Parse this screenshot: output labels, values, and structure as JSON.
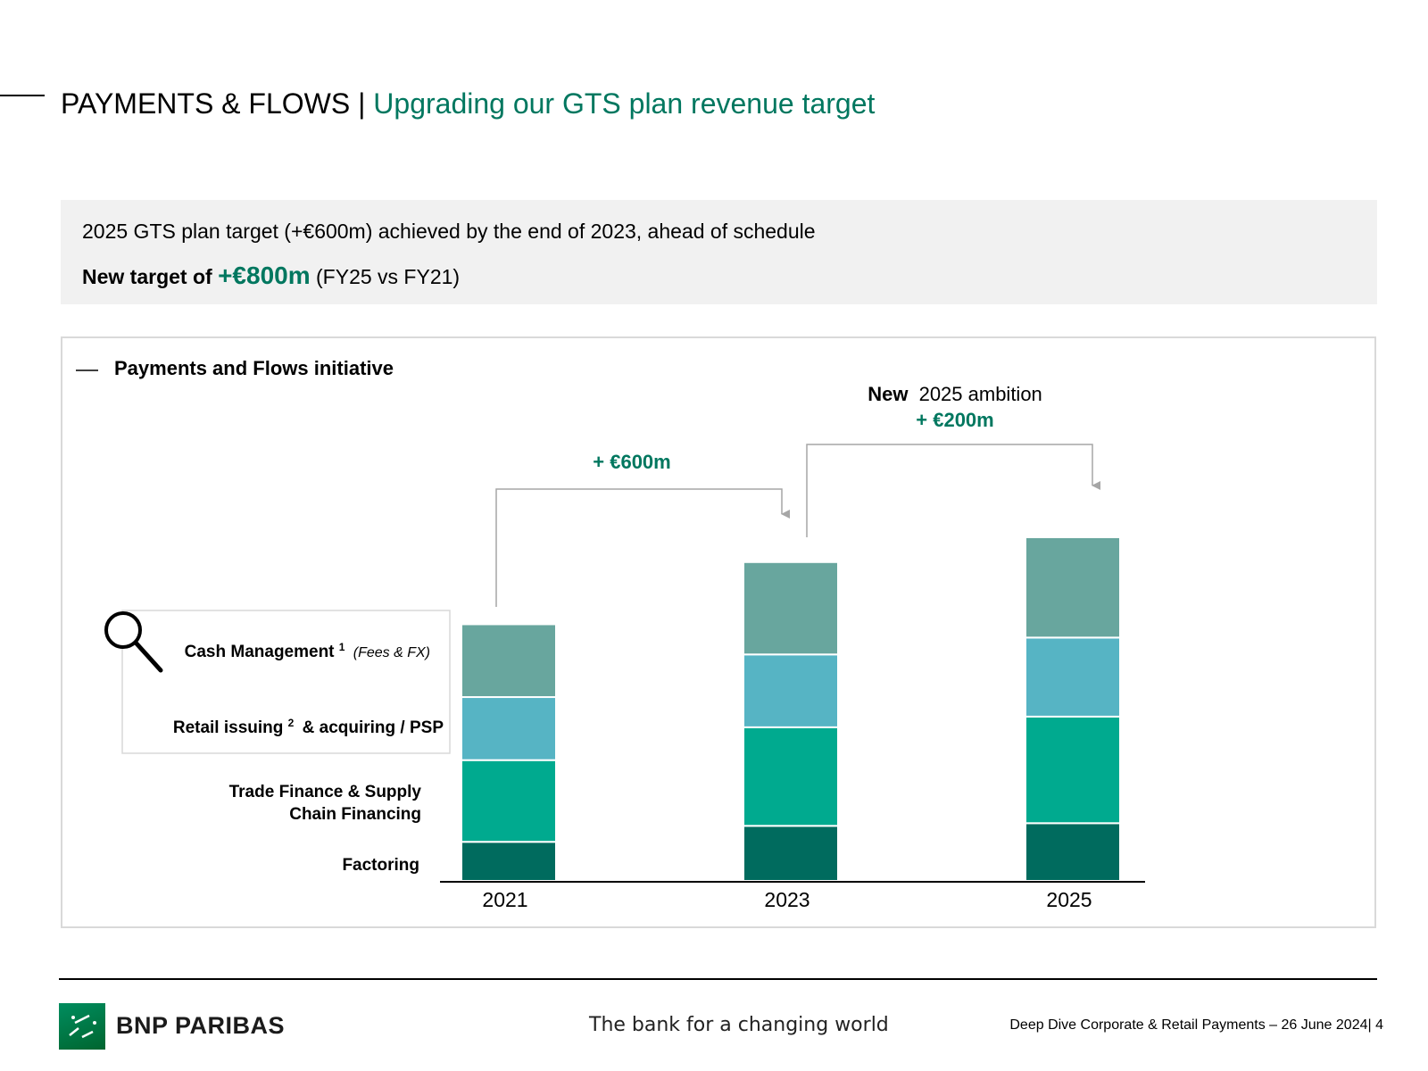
{
  "header": {
    "title": "PAYMENTS & FLOWS |",
    "subtitle": "Upgrading our GTS plan revenue target"
  },
  "summary": {
    "line1": "2025 GTS plan target (+€600m) achieved by the end of 2023, ahead of schedule",
    "line2_label": "New target of",
    "line2_value": "+€800m",
    "line2_suffix": "(FY25 vs FY21)"
  },
  "panel": {
    "title": "Payments and Flows initiative",
    "ambition_bold": "New",
    "ambition_rest": "2025 ambition",
    "ambition_value": "+ €200m",
    "step_value": "+ €600m"
  },
  "legend_labels": {
    "cash_management": "Cash Management",
    "cash_management_sup": "1",
    "cash_management_note": "(Fees & FX)",
    "retail_prefix": "Retail issuing",
    "retail_sup": "2",
    "retail_suffix": "& acquiring / PSP",
    "trade_line1": "Trade Finance & Supply",
    "trade_line2": "Chain Financing",
    "factoring": "Factoring"
  },
  "chart_data": {
    "type": "bar",
    "stacked": true,
    "categories": [
      "2021",
      "2023",
      "2025"
    ],
    "series": [
      {
        "name": "Factoring",
        "color": "#006b5e",
        "values": [
          44,
          62,
          65
        ]
      },
      {
        "name": "Trade Finance & Supply Chain Financing",
        "color": "#00aa8f",
        "values": [
          92,
          111,
          120
        ]
      },
      {
        "name": "Retail issuing & acquiring / PSP",
        "color": "#56b4c4",
        "values": [
          71,
          82,
          89
        ]
      },
      {
        "name": "Cash Management (Fees & FX)",
        "color": "#68a69e",
        "values": [
          82,
          104,
          113
        ]
      }
    ],
    "ylim": [
      0,
      400
    ],
    "grid": false,
    "legend": "left"
  },
  "footer": {
    "brand": "BNP PARIBAS",
    "slogan": "The bank for a changing world",
    "deck": "Deep Dive Corporate & Retail Payments – 26 June 2024| 4"
  },
  "colors": {
    "accent": "#00775f",
    "connector": "#a6a6a6"
  }
}
